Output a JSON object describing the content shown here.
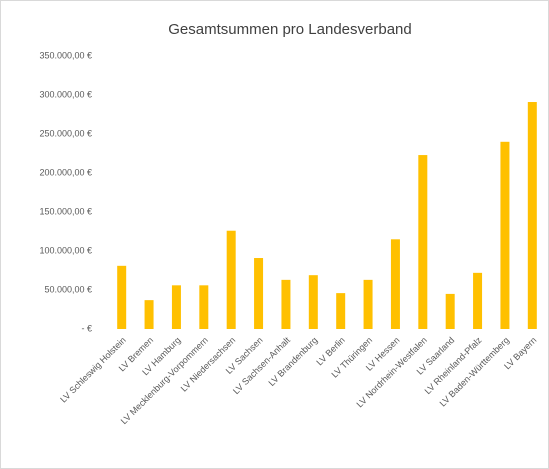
{
  "chart_data": {
    "type": "bar",
    "title": "Gesamtsummen pro Landesverband",
    "categories": [
      "LV Schleswig Holstein",
      "LV Bremen",
      "LV Hamburg",
      "LV Mecklenburg-Vorpommern",
      "LV Niedersachsen",
      "LV Sachsen",
      "LV Sachsen-Anhalt",
      "LV Brandenburg",
      "LV Berlin",
      "LV Thüringen",
      "LV Hessen",
      "LV Nordrhein-Westfalen",
      "LV Saarland",
      "LV Rheinland-Pfalz",
      "LV Baden-Württemberg",
      "LV Bayern"
    ],
    "values": [
      81000,
      37000,
      56000,
      56000,
      126000,
      91000,
      63000,
      69000,
      46000,
      63000,
      115000,
      223000,
      45000,
      72000,
      240000,
      291000
    ],
    "color": "#ffc000",
    "ylim": [
      0,
      350000
    ],
    "yticks": [
      {
        "value": 0,
        "label": "-   €"
      },
      {
        "value": 50000,
        "label": "50.000,00 €"
      },
      {
        "value": 100000,
        "label": "100.000,00 €"
      },
      {
        "value": 150000,
        "label": "150.000,00 €"
      },
      {
        "value": 200000,
        "label": "200.000,00 €"
      },
      {
        "value": 250000,
        "label": "250.000,00 €"
      },
      {
        "value": 300000,
        "label": "300.000,00 €"
      },
      {
        "value": 350000,
        "label": "350.000,00 €"
      }
    ],
    "grid": false
  }
}
